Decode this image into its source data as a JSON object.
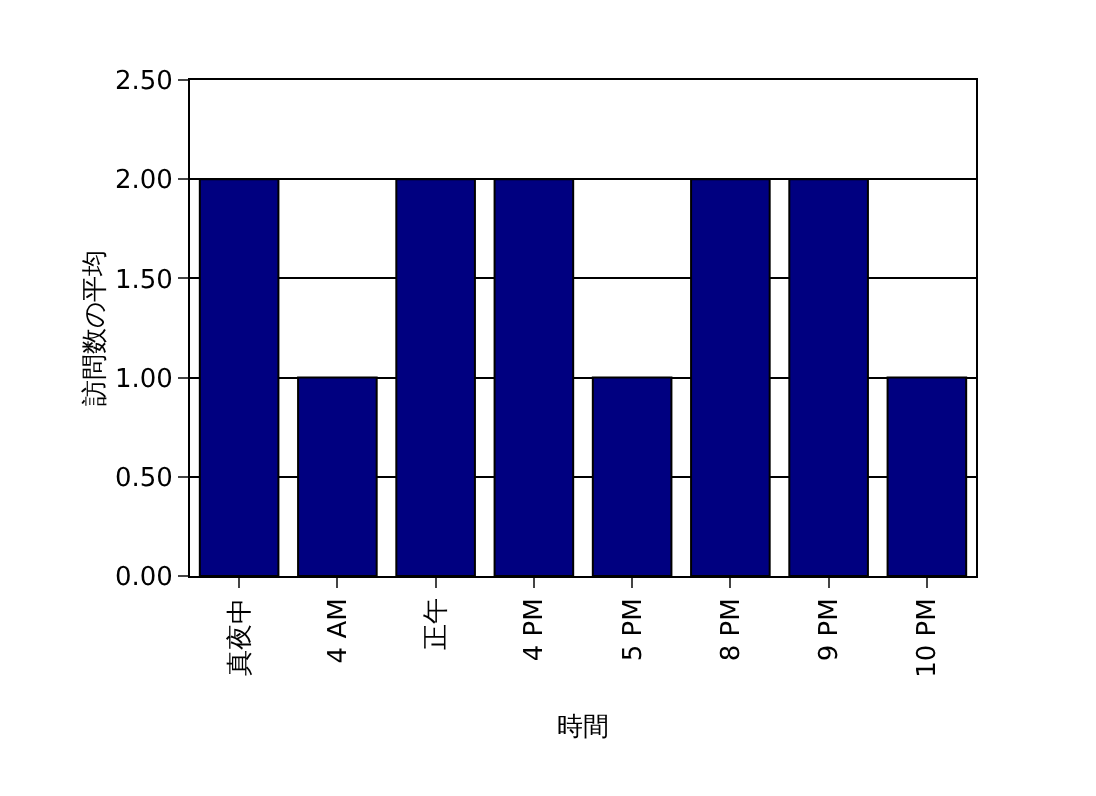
{
  "chart_data": {
    "type": "bar",
    "xlabel": "時間",
    "ylabel": "訪問数の平均",
    "categories": [
      "真夜中",
      "4 AM",
      "正午",
      "4 PM",
      "5 PM",
      "8 PM",
      "9 PM",
      "10 PM"
    ],
    "values": [
      2,
      1,
      2,
      2,
      1,
      2,
      2,
      1
    ],
    "color": "#000080",
    "ylim": [
      0,
      2.5
    ],
    "yticks": [
      {
        "value": 0,
        "label": "0.00"
      },
      {
        "value": 0.5,
        "label": "0.50"
      },
      {
        "value": 1,
        "label": "1.00"
      },
      {
        "value": 1.5,
        "label": "1.50"
      },
      {
        "value": 2,
        "label": "2.00"
      },
      {
        "value": 2.5,
        "label": "2.50"
      }
    ],
    "grid": "y"
  }
}
